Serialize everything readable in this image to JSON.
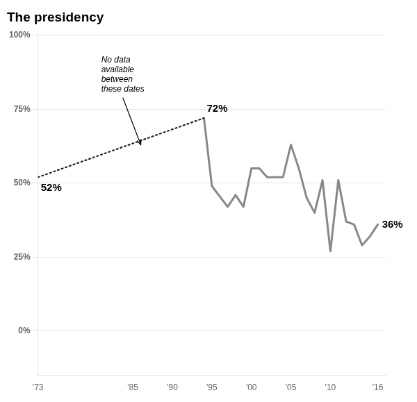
{
  "chart_data": {
    "type": "line",
    "title": "The presidency",
    "xlim": [
      1973,
      2017
    ],
    "xticks": [
      {
        "value": 1973,
        "label": "'73"
      },
      {
        "value": 1985,
        "label": "'85"
      },
      {
        "value": 1990,
        "label": "'90"
      },
      {
        "value": 1995,
        "label": "'95"
      },
      {
        "value": 2000,
        "label": "'00"
      },
      {
        "value": 2005,
        "label": "'05"
      },
      {
        "value": 2010,
        "label": "'10"
      },
      {
        "value": 2016,
        "label": "'16"
      }
    ],
    "ylim": [
      -15,
      100
    ],
    "yticks": [
      {
        "value": 0,
        "label": "0%"
      },
      {
        "value": 25,
        "label": "25%"
      },
      {
        "value": 50,
        "label": "50%"
      },
      {
        "value": 75,
        "label": "75%"
      },
      {
        "value": 100,
        "label": "100%"
      }
    ],
    "grid": true,
    "series": [
      {
        "color": "#222222",
        "line_style": "dotted",
        "x": [
          1973,
          1994
        ],
        "values": [
          52,
          72
        ],
        "value_labels": [
          "52%",
          "72%"
        ]
      },
      {
        "color": "#888888",
        "line_style": "solid",
        "x": [
          1994,
          1995,
          1997,
          1998,
          1999,
          2000,
          2001,
          2002,
          2003,
          2004,
          2005,
          2006,
          2007,
          2008,
          2009,
          2010,
          2011,
          2012,
          2013,
          2014,
          2015,
          2016
        ],
        "values": [
          72,
          49,
          42,
          46,
          42,
          55,
          55,
          52,
          52,
          52,
          63,
          55,
          45,
          40,
          51,
          27,
          51,
          37,
          36,
          29,
          32,
          36
        ],
        "value_labels": [
          null,
          null,
          null,
          null,
          null,
          null,
          null,
          null,
          null,
          null,
          null,
          null,
          null,
          null,
          null,
          null,
          null,
          null,
          null,
          null,
          null,
          "36%"
        ]
      }
    ],
    "annotations": [
      {
        "text": "No data\navailable\nbetween\nthese dates",
        "x": 1981,
        "y": 93,
        "arrow_x": 1986,
        "arrow_y": 63
      }
    ]
  }
}
